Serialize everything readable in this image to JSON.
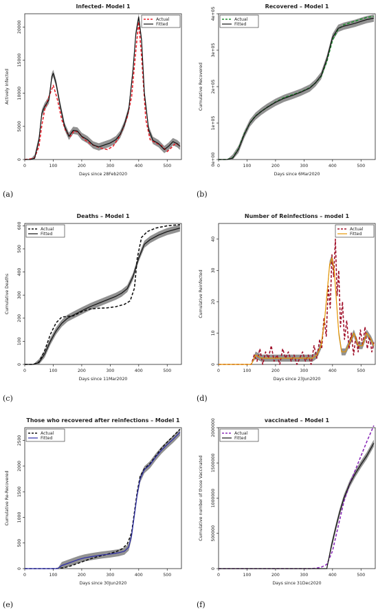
{
  "chart_data": [
    {
      "type": "line",
      "title": "Infected- Model 1",
      "xlabel": "Days since 28Feb2020",
      "ylabel": "Actively Infected",
      "xlim": [
        0,
        550
      ],
      "ylim": [
        0,
        22000
      ],
      "xticks": [
        0,
        100,
        200,
        300,
        400,
        500
      ],
      "yticks": [
        0,
        5000,
        10000,
        15000,
        20000
      ],
      "ytick_labels": [
        "0",
        "5000",
        "10000",
        "15000",
        "20000"
      ],
      "panel_label": "(a)",
      "legend_position": "top-right",
      "series": [
        {
          "name": "Actual",
          "style": "dashed",
          "color": "#e8202a",
          "x": [
            0,
            20,
            35,
            50,
            60,
            70,
            85,
            100,
            115,
            130,
            145,
            160,
            175,
            190,
            210,
            230,
            250,
            270,
            290,
            310,
            330,
            345,
            360,
            375,
            390,
            400,
            410,
            425,
            440,
            460,
            480,
            500,
            515,
            530,
            545
          ],
          "y": [
            0,
            100,
            300,
            2000,
            5200,
            7500,
            9500,
            11200,
            9000,
            6000,
            4200,
            3500,
            4400,
            4000,
            3000,
            2400,
            2000,
            1700,
            1500,
            2000,
            3300,
            4700,
            6400,
            9500,
            16500,
            20800,
            15500,
            6000,
            3000,
            2500,
            2100,
            1200,
            1800,
            2500,
            2000
          ]
        },
        {
          "name": "Fitted",
          "style": "solid",
          "color": "#111111",
          "x": [
            0,
            20,
            35,
            50,
            60,
            70,
            85,
            95,
            100,
            110,
            125,
            140,
            155,
            170,
            185,
            200,
            220,
            240,
            260,
            280,
            300,
            320,
            335,
            350,
            365,
            380,
            390,
            400,
            410,
            420,
            435,
            450,
            470,
            490,
            505,
            520,
            535,
            545
          ],
          "y": [
            0,
            0,
            200,
            3000,
            7000,
            8000,
            9000,
            12500,
            13000,
            11500,
            8000,
            5000,
            3500,
            4400,
            4300,
            3500,
            3000,
            2200,
            1900,
            2200,
            2500,
            3000,
            3800,
            5300,
            7500,
            13500,
            19000,
            21500,
            18000,
            10000,
            4500,
            2900,
            2400,
            1500,
            2000,
            2700,
            2400,
            2000
          ]
        }
      ]
    },
    {
      "type": "line",
      "title": "Recovered – Model 1",
      "xlabel": "Days since 6Mar2020",
      "ylabel": "Cumulative Recovered",
      "xlim": [
        0,
        550
      ],
      "ylim": [
        0,
        400000
      ],
      "xticks": [
        0,
        100,
        200,
        300,
        400,
        500
      ],
      "yticks": [
        0,
        100000,
        200000,
        300000,
        400000
      ],
      "ytick_labels": [
        "0e+00",
        "1e+05",
        "2e+05",
        "3e+05",
        "4e+05"
      ],
      "panel_label": "(b)",
      "legend_position": "top-left",
      "series": [
        {
          "name": "Actual",
          "style": "dashed",
          "color": "#1e8c2e",
          "x": [
            0,
            30,
            50,
            70,
            90,
            110,
            130,
            150,
            170,
            200,
            230,
            260,
            290,
            320,
            340,
            360,
            380,
            400,
            420,
            440,
            460,
            480,
            500,
            520,
            545
          ],
          "y": [
            0,
            0,
            5000,
            30000,
            70000,
            100000,
            120000,
            132000,
            143000,
            158000,
            170000,
            178000,
            186000,
            197000,
            210000,
            228000,
            268000,
            327000,
            358000,
            370000,
            375000,
            380000,
            385000,
            390000,
            393000
          ]
        },
        {
          "name": "Fitted",
          "style": "solid",
          "color": "#111111",
          "x": [
            0,
            30,
            50,
            70,
            90,
            110,
            130,
            150,
            170,
            200,
            230,
            260,
            290,
            320,
            340,
            360,
            380,
            400,
            420,
            440,
            460,
            480,
            500,
            520,
            545
          ],
          "y": [
            0,
            0,
            4000,
            28000,
            68000,
            100000,
            119000,
            132000,
            143000,
            157000,
            168000,
            176000,
            185000,
            196000,
            210000,
            230000,
            275000,
            335000,
            360000,
            366000,
            370000,
            374000,
            379000,
            384000,
            388000
          ]
        }
      ]
    },
    {
      "type": "line",
      "title": "Deaths – Model 1",
      "xlabel": "Days since 11Mar2020",
      "ylabel": "Cumulative Deaths",
      "xlim": [
        0,
        550
      ],
      "ylim": [
        0,
        610
      ],
      "xticks": [
        0,
        100,
        200,
        300,
        400,
        500
      ],
      "yticks": [
        0,
        100,
        200,
        300,
        400,
        500,
        600
      ],
      "ytick_labels": [
        "0",
        "100",
        "200",
        "300",
        "400",
        "500",
        "600"
      ],
      "panel_label": "(c)",
      "legend_position": "top-left",
      "series": [
        {
          "name": "Actual",
          "style": "dashed",
          "color": "#111111",
          "x": [
            0,
            30,
            50,
            70,
            90,
            110,
            130,
            150,
            170,
            200,
            230,
            260,
            290,
            320,
            350,
            370,
            385,
            395,
            410,
            430,
            460,
            500,
            545
          ],
          "y": [
            0,
            0,
            10,
            60,
            130,
            180,
            205,
            208,
            210,
            228,
            240,
            243,
            245,
            250,
            260,
            275,
            330,
            460,
            550,
            575,
            590,
            600,
            605
          ]
        },
        {
          "name": "Fitted",
          "style": "solid",
          "color": "#111111",
          "x": [
            0,
            30,
            50,
            70,
            90,
            110,
            130,
            150,
            170,
            200,
            230,
            260,
            290,
            320,
            340,
            360,
            380,
            400,
            420,
            440,
            470,
            500,
            545
          ],
          "y": [
            0,
            0,
            8,
            45,
            100,
            145,
            178,
            200,
            213,
            232,
            250,
            265,
            280,
            295,
            308,
            328,
            380,
            460,
            520,
            540,
            560,
            575,
            590
          ]
        }
      ]
    },
    {
      "type": "line",
      "title": "Number of Reinfections – model 1",
      "xlabel": "Days since 23Jun2020",
      "ylabel": "Cumulative Reinfected",
      "xlim": [
        0,
        550
      ],
      "ylim": [
        0,
        45
      ],
      "xticks": [
        0,
        100,
        200,
        300,
        400,
        500
      ],
      "yticks": [
        0,
        10,
        20,
        30,
        40
      ],
      "ytick_labels": [
        "0",
        "10",
        "20",
        "30",
        "40"
      ],
      "panel_label": "(d)",
      "legend_position": "top-right",
      "series": [
        {
          "name": "Actual",
          "style": "dashed",
          "color": "#a0102a",
          "x": [
            0,
            115,
            125,
            135,
            145,
            155,
            165,
            175,
            185,
            195,
            205,
            215,
            225,
            235,
            245,
            255,
            265,
            275,
            285,
            295,
            305,
            315,
            325,
            335,
            345,
            355,
            362,
            370,
            378,
            385,
            392,
            398,
            404,
            410,
            416,
            422,
            428,
            435,
            442,
            450,
            458,
            466,
            474,
            482,
            490,
            498,
            506,
            514,
            522,
            530,
            538,
            545
          ],
          "y": [
            0,
            0,
            3,
            1,
            5,
            0,
            4,
            2,
            6,
            1,
            3,
            0,
            5,
            2,
            4,
            1,
            3,
            0,
            2,
            4,
            1,
            3,
            0,
            6,
            2,
            8,
            5,
            15,
            9,
            25,
            18,
            35,
            28,
            40,
            22,
            30,
            12,
            20,
            8,
            14,
            5,
            10,
            3,
            9,
            4,
            11,
            6,
            12,
            5,
            9,
            4,
            7
          ]
        },
        {
          "name": "Fitted",
          "style": "solid",
          "color": "#e69500",
          "x": [
            0,
            115,
            130,
            150,
            170,
            190,
            210,
            230,
            250,
            270,
            290,
            310,
            330,
            345,
            360,
            372,
            382,
            390,
            398,
            406,
            414,
            422,
            432,
            445,
            460,
            475,
            490,
            505,
            520,
            535,
            545
          ],
          "y": [
            0,
            0,
            3,
            2,
            2,
            2,
            2,
            2,
            2,
            2,
            2,
            2,
            2,
            3,
            6,
            14,
            24,
            32,
            34,
            30,
            20,
            10,
            4,
            4,
            7,
            10,
            6,
            6,
            10,
            8,
            6
          ]
        }
      ]
    },
    {
      "type": "line",
      "title": "Those who recovered after reinfections – Model 1",
      "xlabel": "Days since 30Jun2020",
      "ylabel": "Cumulative Re-Recovered",
      "xlim": [
        0,
        550
      ],
      "ylim": [
        0,
        2750
      ],
      "xticks": [
        0,
        100,
        200,
        300,
        400,
        500
      ],
      "yticks": [
        0,
        500,
        1000,
        1500,
        2000,
        2500
      ],
      "ytick_labels": [
        "0",
        "500",
        "1000",
        "1500",
        "2000",
        "2500"
      ],
      "panel_label": "(e)",
      "legend_position": "top-left",
      "series": [
        {
          "name": "Actual",
          "style": "dashed",
          "color": "#111111",
          "x": [
            0,
            100,
            120,
            140,
            160,
            180,
            200,
            230,
            260,
            290,
            320,
            340,
            360,
            375,
            385,
            395,
            405,
            420,
            440,
            460,
            480,
            500,
            520,
            545
          ],
          "y": [
            0,
            0,
            5,
            20,
            50,
            90,
            130,
            190,
            240,
            280,
            330,
            380,
            480,
            700,
            1100,
            1500,
            1800,
            1950,
            2050,
            2200,
            2350,
            2470,
            2580,
            2720
          ]
        },
        {
          "name": "Fitted",
          "style": "solid",
          "color": "#2a2aa8",
          "x": [
            0,
            115,
            130,
            150,
            170,
            190,
            210,
            240,
            270,
            300,
            330,
            350,
            365,
            375,
            385,
            395,
            405,
            420,
            440,
            460,
            480,
            500,
            520,
            545
          ],
          "y": [
            0,
            0,
            60,
            100,
            140,
            180,
            210,
            240,
            265,
            285,
            310,
            340,
            420,
            650,
            1050,
            1450,
            1750,
            1930,
            2030,
            2180,
            2310,
            2420,
            2520,
            2660
          ]
        }
      ]
    },
    {
      "type": "line",
      "title": "vaccinated – Model 1",
      "xlabel": "Days since 31Dec2020",
      "ylabel": "Cumulative number of those Vaccinated",
      "xlim": [
        0,
        550
      ],
      "ylim": [
        0,
        2000000
      ],
      "xticks": [
        0,
        100,
        200,
        300,
        400,
        500
      ],
      "yticks": [
        0,
        500000,
        1000000,
        1500000,
        2000000
      ],
      "ytick_labels": [
        "0",
        "500000",
        "1000000",
        "1500000",
        "2000000"
      ],
      "panel_label": "(f)",
      "legend_position": "top-left",
      "series": [
        {
          "name": "Actual",
          "style": "dashed",
          "color": "#8a2ab8",
          "x": [
            0,
            320,
            340,
            360,
            380,
            400,
            420,
            440,
            460,
            480,
            500,
            520,
            545
          ],
          "y": [
            0,
            0,
            5000,
            20000,
            60000,
            250000,
            600000,
            950000,
            1200000,
            1400000,
            1600000,
            1800000,
            2030000
          ]
        },
        {
          "name": "Fitted",
          "style": "solid",
          "color": "#111111",
          "x": [
            0,
            380,
            395,
            410,
            425,
            440,
            460,
            480,
            500,
            520,
            545
          ],
          "y": [
            0,
            0,
            300000,
            560000,
            800000,
            1000000,
            1200000,
            1350000,
            1480000,
            1600000,
            1780000
          ]
        }
      ]
    }
  ]
}
